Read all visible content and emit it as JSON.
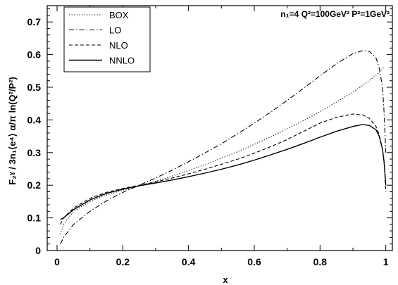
{
  "chart_data": {
    "type": "line",
    "xlabel": "x",
    "ylabel": "F₂ˠ / 3n₁⟨e⁴⟩ α/π ln(Q²/P²)",
    "annotation": "n₁=4 Q²=100GeV² P²=1GeV²",
    "xlim": [
      -0.03,
      1.02
    ],
    "ylim": [
      0,
      0.75
    ],
    "xticks": [
      "0",
      "0.2",
      "0.4",
      "0.6",
      "0.8",
      "1"
    ],
    "yticks": [
      "0",
      "0.1",
      "0.2",
      "0.3",
      "0.4",
      "0.5",
      "0.6",
      "0.7"
    ],
    "grid": false,
    "legend_position": "top-left",
    "series": [
      {
        "name": "BOX",
        "dash": "dotted",
        "x": [
          0.01,
          0.02,
          0.05,
          0.1,
          0.15,
          0.2,
          0.25,
          0.3,
          0.35,
          0.4,
          0.45,
          0.5,
          0.55,
          0.6,
          0.65,
          0.7,
          0.75,
          0.8,
          0.85,
          0.9,
          0.95,
          0.98,
          0.995
        ],
        "y": [
          0.05,
          0.08,
          0.12,
          0.15,
          0.17,
          0.185,
          0.198,
          0.212,
          0.228,
          0.245,
          0.263,
          0.283,
          0.303,
          0.325,
          0.348,
          0.373,
          0.398,
          0.425,
          0.455,
          0.485,
          0.52,
          0.545,
          0.562
        ]
      },
      {
        "name": "LO",
        "dash": "dashdot",
        "x": [
          0.01,
          0.02,
          0.05,
          0.1,
          0.15,
          0.2,
          0.25,
          0.3,
          0.35,
          0.4,
          0.45,
          0.5,
          0.55,
          0.6,
          0.65,
          0.7,
          0.75,
          0.8,
          0.85,
          0.9,
          0.93,
          0.95,
          0.97,
          0.98,
          0.99,
          0.995,
          1.0
        ],
        "y": [
          0.02,
          0.04,
          0.08,
          0.12,
          0.152,
          0.178,
          0.2,
          0.222,
          0.246,
          0.272,
          0.299,
          0.327,
          0.358,
          0.39,
          0.424,
          0.46,
          0.497,
          0.535,
          0.572,
          0.603,
          0.612,
          0.61,
          0.59,
          0.56,
          0.5,
          0.42,
          0.3
        ]
      },
      {
        "name": "NLO",
        "dash": "dashed",
        "x": [
          0.01,
          0.02,
          0.05,
          0.1,
          0.15,
          0.2,
          0.25,
          0.3,
          0.35,
          0.4,
          0.45,
          0.5,
          0.55,
          0.6,
          0.65,
          0.7,
          0.75,
          0.8,
          0.85,
          0.9,
          0.93,
          0.95,
          0.97,
          0.98,
          0.99,
          0.995,
          1.0
        ],
        "y": [
          0.08,
          0.1,
          0.13,
          0.16,
          0.178,
          0.19,
          0.2,
          0.21,
          0.222,
          0.235,
          0.249,
          0.264,
          0.28,
          0.298,
          0.318,
          0.34,
          0.365,
          0.39,
          0.408,
          0.418,
          0.415,
          0.405,
          0.38,
          0.355,
          0.31,
          0.27,
          0.18
        ]
      },
      {
        "name": "NNLO",
        "dash": "solid",
        "x": [
          0.01,
          0.02,
          0.05,
          0.1,
          0.15,
          0.2,
          0.25,
          0.3,
          0.35,
          0.4,
          0.45,
          0.5,
          0.55,
          0.6,
          0.65,
          0.7,
          0.75,
          0.8,
          0.85,
          0.9,
          0.93,
          0.95,
          0.97,
          0.98,
          0.99,
          0.995,
          1.0
        ],
        "y": [
          0.095,
          0.1,
          0.125,
          0.155,
          0.175,
          0.188,
          0.198,
          0.207,
          0.216,
          0.226,
          0.237,
          0.249,
          0.262,
          0.277,
          0.293,
          0.31,
          0.328,
          0.347,
          0.365,
          0.38,
          0.386,
          0.383,
          0.37,
          0.35,
          0.31,
          0.27,
          0.2
        ]
      }
    ]
  }
}
